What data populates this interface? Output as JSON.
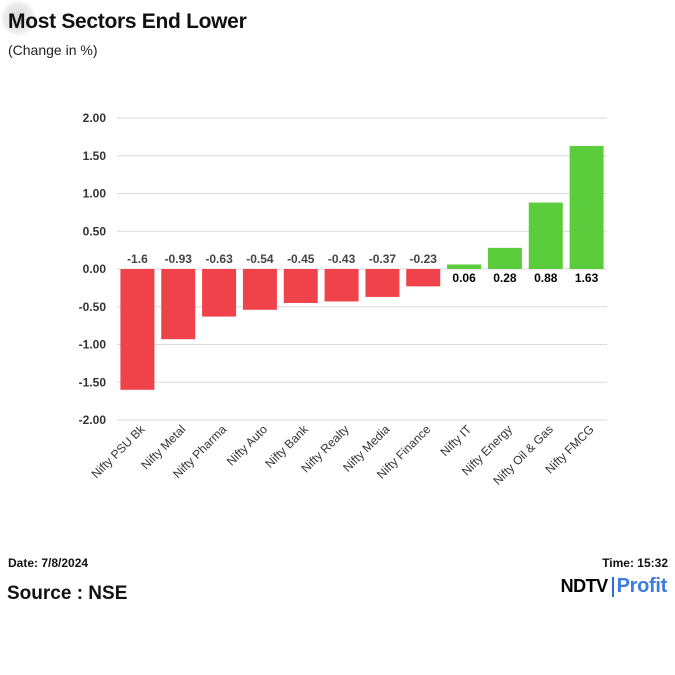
{
  "header": {
    "title": "Most Sectors End Lower",
    "subtitle": "(Change in %)"
  },
  "footer": {
    "date": "Date: 7/8/2024",
    "time": "Time: 15:32",
    "source": "Source : NSE",
    "logo_primary": "NDTV",
    "logo_secondary": "Profit"
  },
  "colors": {
    "negative": "#f0424a",
    "positive": "#5bcc3c",
    "grid": "#d9d9d9",
    "axis_text": "#333333",
    "brand_blue": "#3d7be0"
  },
  "chart_data": {
    "type": "bar",
    "title": "Most Sectors End Lower",
    "subtitle": "(Change in %)",
    "xlabel": "",
    "ylabel": "",
    "categories": [
      "Nifty PSU Bk",
      "Nifty Metal",
      "Nifty Pharma",
      "Nifty Auto",
      "Nifty Bank",
      "Nifty Realty",
      "Nifty Media",
      "Nifty Finance",
      "Nifty IT",
      "Nifty Energy",
      "Nifty Oil & Gas",
      "Nifty FMCG"
    ],
    "values": [
      -1.6,
      -0.93,
      -0.63,
      -0.54,
      -0.45,
      -0.43,
      -0.37,
      -0.23,
      0.06,
      0.28,
      0.88,
      1.63
    ],
    "labels": [
      "-1.6",
      "-0.93",
      "-0.63",
      "-0.54",
      "-0.45",
      "-0.43",
      "-0.37",
      "-0.23",
      "0.06",
      "0.28",
      "0.88",
      "1.63"
    ],
    "yticks": [
      "2.00",
      "1.50",
      "1.00",
      "0.50",
      "0.00",
      "-0.50",
      "-1.00",
      "-1.50",
      "-2.00"
    ],
    "ylim": [
      -2,
      2
    ],
    "grid": true,
    "legend": "none"
  }
}
